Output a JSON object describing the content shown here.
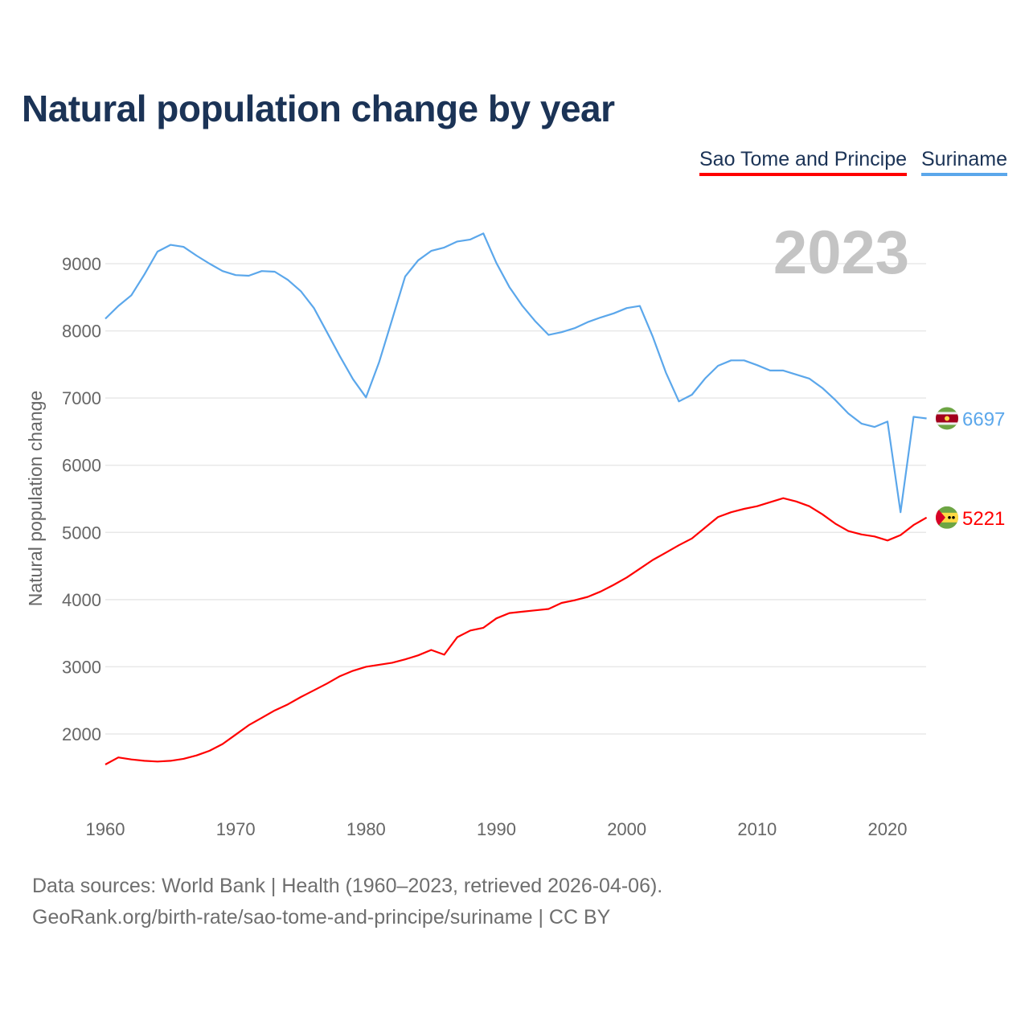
{
  "chart_data": {
    "type": "line",
    "title": "Natural population change by year",
    "xlabel": "",
    "ylabel": "Natural population change",
    "year_label": "2023",
    "xlim": [
      1960,
      2023
    ],
    "ylim": [
      1000,
      9800
    ],
    "x_ticks": [
      1960,
      1970,
      1980,
      1990,
      2000,
      2010,
      2020
    ],
    "y_ticks": [
      2000,
      3000,
      4000,
      5000,
      6000,
      7000,
      8000,
      9000
    ],
    "grid": true,
    "legend_position": "top-right",
    "x": [
      1960,
      1961,
      1962,
      1963,
      1964,
      1965,
      1966,
      1967,
      1968,
      1969,
      1970,
      1971,
      1972,
      1973,
      1974,
      1975,
      1976,
      1977,
      1978,
      1979,
      1980,
      1981,
      1982,
      1983,
      1984,
      1985,
      1986,
      1987,
      1988,
      1989,
      1990,
      1991,
      1992,
      1993,
      1994,
      1995,
      1996,
      1997,
      1998,
      1999,
      2000,
      2001,
      2002,
      2003,
      2004,
      2005,
      2006,
      2007,
      2008,
      2009,
      2010,
      2011,
      2012,
      2013,
      2014,
      2015,
      2016,
      2017,
      2018,
      2019,
      2020,
      2021,
      2022,
      2023
    ],
    "series": [
      {
        "name": "Sao Tome and Principe",
        "color": "#ff0000",
        "end_label": "5221",
        "values": [
          1545,
          1650,
          1620,
          1600,
          1590,
          1600,
          1630,
          1680,
          1750,
          1850,
          1990,
          2130,
          2240,
          2350,
          2440,
          2550,
          2650,
          2750,
          2860,
          2940,
          3000,
          3030,
          3060,
          3110,
          3170,
          3250,
          3180,
          3440,
          3540,
          3580,
          3720,
          3800,
          3820,
          3840,
          3860,
          3950,
          3990,
          4040,
          4120,
          4220,
          4330,
          4460,
          4590,
          4700,
          4810,
          4910,
          5070,
          5230,
          5300,
          5350,
          5390,
          5450,
          5510,
          5460,
          5390,
          5270,
          5130,
          5020,
          4970,
          4940,
          4880,
          4960,
          5110,
          5221
        ]
      },
      {
        "name": "Suriname",
        "color": "#5ba7eb",
        "end_label": "6697",
        "values": [
          8180,
          8370,
          8530,
          8840,
          9180,
          9280,
          9250,
          9120,
          9000,
          8890,
          8830,
          8820,
          8890,
          8880,
          8760,
          8590,
          8340,
          7980,
          7620,
          7280,
          7010,
          7530,
          8170,
          8810,
          9050,
          9190,
          9240,
          9330,
          9360,
          9450,
          9010,
          8650,
          8370,
          8140,
          7940,
          7980,
          8040,
          8130,
          8200,
          8260,
          8340,
          8370,
          7910,
          7380,
          6950,
          7050,
          7290,
          7480,
          7560,
          7560,
          7490,
          7410,
          7410,
          7350,
          7290,
          7150,
          6970,
          6770,
          6620,
          6570,
          6650,
          5300,
          6720,
          6697
        ]
      }
    ]
  },
  "footer": {
    "line1": "Data sources: World Bank | Health (1960–2023, retrieved 2026-04-06).",
    "line2": "GeoRank.org/birth-rate/sao-tome-and-principe/suriname | CC BY"
  }
}
